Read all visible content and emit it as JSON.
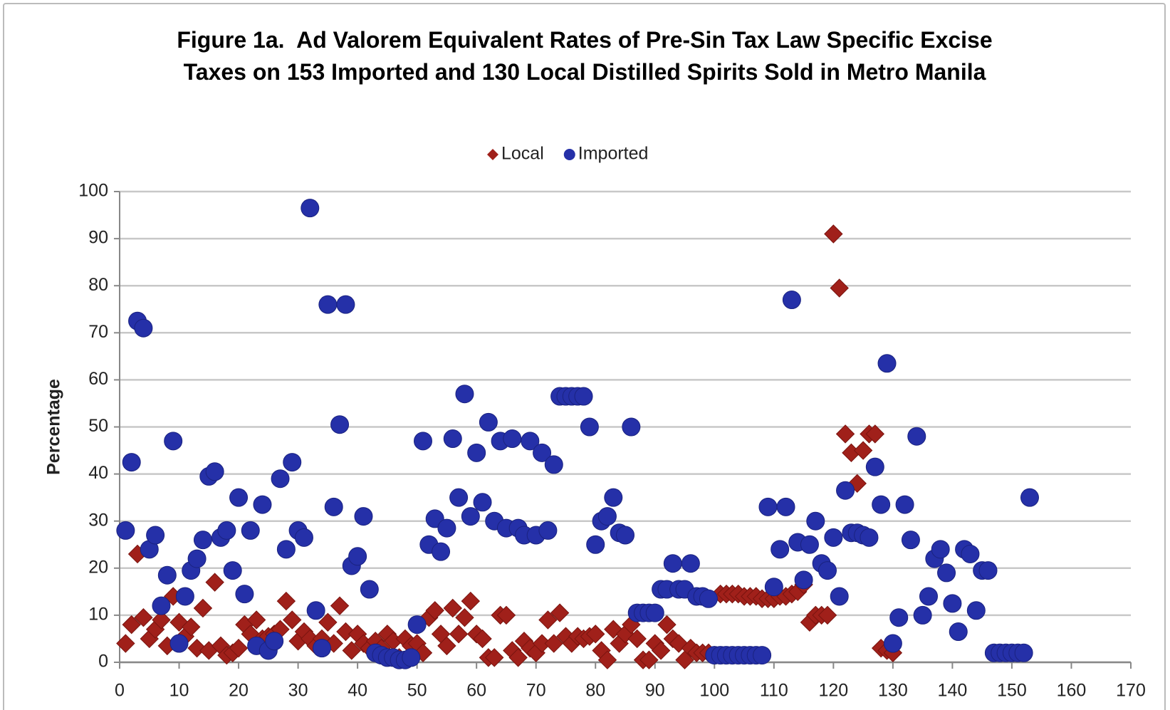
{
  "chart_data": {
    "type": "scatter",
    "title": "Figure 1a.  Ad Valorem Equivalent Rates of Pre-Sin Tax Law Specific Excise Taxes on 153 Imported and 130 Local Distilled Spirits Sold in Metro Manila",
    "y_label": "Percentage",
    "xlim": [
      0,
      170
    ],
    "xticks": [
      0,
      10,
      20,
      30,
      40,
      50,
      60,
      70,
      80,
      90,
      100,
      110,
      120,
      130,
      140,
      150,
      160,
      170
    ],
    "ylim": [
      0,
      100
    ],
    "yticks": [
      0,
      10,
      20,
      30,
      40,
      50,
      60,
      70,
      80,
      90,
      100
    ],
    "grid": true,
    "legend": "top",
    "series": [
      {
        "name": "Local",
        "color": "#a0201a",
        "marker": "diamond",
        "x": [
          1,
          2,
          3,
          4,
          5,
          6,
          7,
          8,
          9,
          10,
          11,
          12,
          13,
          14,
          15,
          16,
          17,
          18,
          19,
          20,
          21,
          22,
          23,
          24,
          25,
          26,
          27,
          28,
          29,
          30,
          31,
          32,
          33,
          34,
          35,
          36,
          37,
          38,
          39,
          40,
          41,
          42,
          43,
          44,
          45,
          46,
          47,
          48,
          49,
          50,
          51,
          52,
          53,
          54,
          55,
          56,
          57,
          58,
          59,
          60,
          61,
          62,
          63,
          64,
          65,
          66,
          67,
          68,
          69,
          70,
          71,
          72,
          73,
          74,
          75,
          76,
          77,
          78,
          79,
          80,
          81,
          82,
          83,
          84,
          85,
          86,
          87,
          88,
          89,
          90,
          91,
          92,
          93,
          94,
          95,
          96,
          97,
          98,
          99,
          100,
          101,
          102,
          103,
          104,
          105,
          106,
          107,
          108,
          109,
          110,
          111,
          112,
          113,
          114,
          115,
          116,
          117,
          118,
          119,
          120,
          121,
          122,
          123,
          124,
          125,
          126,
          127,
          128,
          129,
          130
        ],
        "values": [
          4,
          8,
          23,
          9.5,
          5,
          7,
          9,
          3.5,
          14,
          8.5,
          5.5,
          7.5,
          3,
          11.5,
          2.5,
          17,
          3.5,
          1.5,
          2,
          3,
          8,
          6,
          9,
          5,
          5.5,
          6,
          7,
          13,
          9,
          4.5,
          6.5,
          5,
          3.5,
          5,
          8.5,
          4,
          12,
          6.5,
          2.5,
          6,
          4,
          3,
          4.5,
          3,
          6,
          4.5,
          1,
          5,
          3.5,
          4,
          2,
          9.5,
          11,
          6,
          3.5,
          11.5,
          6,
          9.5,
          13,
          6,
          5,
          1,
          1,
          10,
          10,
          2.5,
          1,
          4.5,
          3,
          2,
          4,
          9,
          4,
          10.5,
          5.5,
          4,
          5.5,
          5,
          5.5,
          6,
          2.5,
          0.5,
          7,
          4,
          6,
          8,
          5,
          0.5,
          0.5,
          4,
          2.5,
          8,
          5,
          4,
          0.5,
          3,
          2,
          2,
          2,
          1.5,
          14.5,
          14.5,
          14.5,
          14.5,
          14,
          14,
          14,
          13.5,
          13.5,
          13.5,
          14,
          14,
          14.5,
          15,
          16.5,
          8.5,
          10,
          10,
          10,
          91,
          79.5,
          48.5,
          44.5,
          38,
          45,
          48.5,
          48.5,
          3,
          2.5,
          2
        ]
      },
      {
        "name": "Imported",
        "color": "#2530a8",
        "marker": "circle",
        "x": [
          1,
          2,
          3,
          4,
          5,
          6,
          7,
          8,
          9,
          10,
          11,
          12,
          13,
          14,
          15,
          16,
          17,
          18,
          19,
          20,
          21,
          22,
          23,
          24,
          25,
          26,
          27,
          28,
          29,
          30,
          31,
          32,
          33,
          34,
          35,
          36,
          37,
          38,
          39,
          40,
          41,
          42,
          43,
          44,
          45,
          46,
          47,
          48,
          49,
          50,
          51,
          52,
          53,
          54,
          55,
          56,
          57,
          58,
          59,
          60,
          61,
          62,
          63,
          64,
          65,
          66,
          67,
          68,
          69,
          70,
          71,
          72,
          73,
          74,
          75,
          76,
          77,
          78,
          79,
          80,
          81,
          82,
          83,
          84,
          85,
          86,
          87,
          88,
          89,
          90,
          91,
          92,
          93,
          94,
          95,
          96,
          97,
          98,
          99,
          100,
          101,
          102,
          103,
          104,
          105,
          106,
          107,
          108,
          109,
          110,
          111,
          112,
          113,
          114,
          115,
          116,
          117,
          118,
          119,
          120,
          121,
          122,
          123,
          124,
          125,
          126,
          127,
          128,
          129,
          130,
          131,
          132,
          133,
          134,
          135,
          136,
          137,
          138,
          139,
          140,
          141,
          142,
          143,
          144,
          145,
          146,
          147,
          148,
          149,
          150,
          151,
          152,
          153
        ],
        "values": [
          28,
          42.5,
          72.5,
          71,
          24,
          27,
          12,
          18.5,
          47,
          4,
          14,
          19.5,
          22,
          26,
          39.5,
          40.5,
          26.5,
          28,
          19.5,
          35,
          14.5,
          28,
          3.5,
          33.5,
          2.5,
          4.5,
          39,
          24,
          42.5,
          28,
          26.5,
          96.5,
          11,
          3,
          76,
          33,
          50.5,
          76,
          20.5,
          22.5,
          31,
          15.5,
          2,
          1.5,
          1,
          1,
          0.5,
          0.5,
          1,
          8,
          47,
          25,
          30.5,
          23.5,
          28.5,
          47.5,
          35,
          57,
          31,
          44.5,
          34,
          51,
          30,
          47,
          28.5,
          47.5,
          28.5,
          27,
          47,
          27,
          44.5,
          28,
          42,
          56.5,
          56.5,
          56.5,
          56.5,
          56.5,
          50,
          25,
          30,
          31,
          35,
          27.5,
          27,
          50,
          10.5,
          10.5,
          10.5,
          10.5,
          15.5,
          15.5,
          21,
          15.5,
          15.5,
          21,
          14,
          14,
          13.5,
          1.5,
          1.5,
          1.5,
          1.5,
          1.5,
          1.5,
          1.5,
          1.5,
          1.5,
          33,
          16,
          24,
          33,
          77,
          25.5,
          17.5,
          25,
          30,
          21,
          19.5,
          26.5,
          14,
          36.5,
          27.5,
          27.5,
          27,
          26.5,
          41.5,
          33.5,
          63.5,
          4,
          9.5,
          33.5,
          26,
          48,
          10,
          14,
          22,
          24,
          19,
          12.5,
          6.5,
          24,
          23,
          11,
          19.5,
          19.5,
          2,
          2,
          2,
          2,
          2,
          2,
          35
        ]
      }
    ]
  }
}
